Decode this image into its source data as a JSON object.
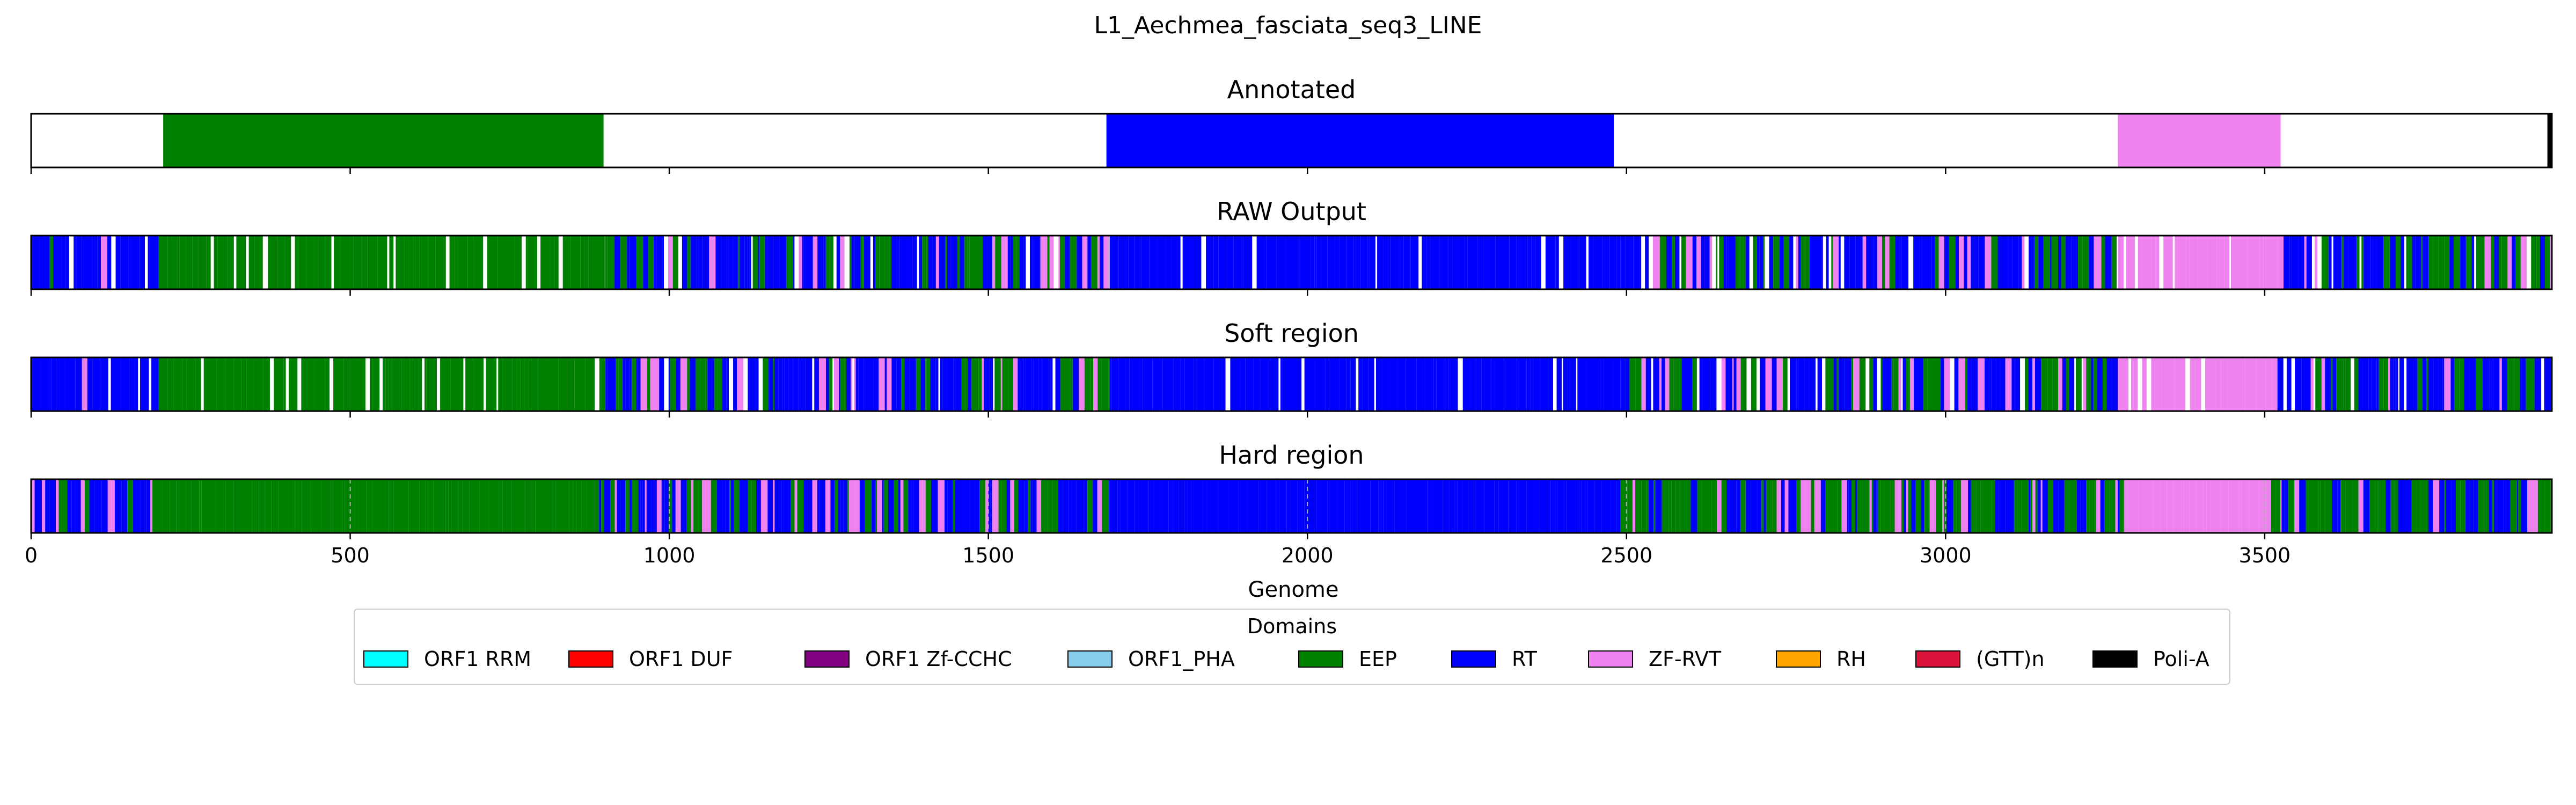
{
  "chart_data": {
    "type": "genome-track",
    "title": "L1_Aechmea_fasciata_seq3_LINE",
    "xlabel": "Genome",
    "xlim": [
      0,
      3950
    ],
    "xticks": [
      0,
      500,
      1000,
      1500,
      2000,
      2500,
      3000,
      3500
    ],
    "xtick_labels": [
      "0",
      "500",
      "1000",
      "1500",
      "2000",
      "2500",
      "3000",
      "3500"
    ],
    "panels": [
      {
        "title": "Annotated",
        "segments": [
          {
            "start": 207,
            "end": 897,
            "domain": "EEP"
          },
          {
            "start": 1685,
            "end": 2480,
            "domain": "RT"
          },
          {
            "start": 3270,
            "end": 3525,
            "domain": "ZF-RVT"
          },
          {
            "start": 3943,
            "end": 3950,
            "domain": "Poli-A"
          }
        ]
      },
      {
        "title": "RAW Output",
        "profile": [
          {
            "start": 0,
            "end": 200,
            "pattern": "RT",
            "fill": 0.85,
            "mix": [
              "RT",
              "ZF-RVT",
              "EEP"
            ]
          },
          {
            "start": 200,
            "end": 500,
            "pattern": "EEP",
            "fill": 0.78,
            "mix": [
              "EEP"
            ]
          },
          {
            "start": 500,
            "end": 900,
            "pattern": "EEP",
            "fill": 0.82,
            "mix": [
              "EEP"
            ]
          },
          {
            "start": 900,
            "end": 1690,
            "pattern": "mixed",
            "fill": 0.9,
            "mix": [
              "RT",
              "EEP",
              "ZF-RVT"
            ]
          },
          {
            "start": 1690,
            "end": 2480,
            "pattern": "RT",
            "fill": 0.88,
            "mix": [
              "RT"
            ]
          },
          {
            "start": 2480,
            "end": 3270,
            "pattern": "mixed",
            "fill": 0.88,
            "mix": [
              "RT",
              "EEP",
              "ZF-RVT"
            ]
          },
          {
            "start": 3270,
            "end": 3520,
            "pattern": "ZF-RVT",
            "fill": 0.7,
            "mix": [
              "ZF-RVT"
            ]
          },
          {
            "start": 3520,
            "end": 3950,
            "pattern": "mixed",
            "fill": 0.9,
            "mix": [
              "RT",
              "EEP",
              "ZF-RVT"
            ]
          }
        ]
      },
      {
        "title": "Soft region",
        "profile": [
          {
            "start": 0,
            "end": 200,
            "pattern": "RT",
            "fill": 0.85,
            "mix": [
              "RT",
              "ZF-RVT",
              "EEP"
            ]
          },
          {
            "start": 200,
            "end": 500,
            "pattern": "EEP",
            "fill": 0.78,
            "mix": [
              "EEP"
            ]
          },
          {
            "start": 500,
            "end": 900,
            "pattern": "EEP",
            "fill": 0.82,
            "mix": [
              "EEP"
            ]
          },
          {
            "start": 900,
            "end": 1690,
            "pattern": "mixed",
            "fill": 0.9,
            "mix": [
              "RT",
              "EEP",
              "ZF-RVT"
            ]
          },
          {
            "start": 1690,
            "end": 2480,
            "pattern": "RT",
            "fill": 0.88,
            "mix": [
              "RT"
            ]
          },
          {
            "start": 2480,
            "end": 3270,
            "pattern": "mixed",
            "fill": 0.88,
            "mix": [
              "RT",
              "EEP",
              "ZF-RVT"
            ]
          },
          {
            "start": 3270,
            "end": 3520,
            "pattern": "ZF-RVT",
            "fill": 0.7,
            "mix": [
              "ZF-RVT"
            ]
          },
          {
            "start": 3520,
            "end": 3950,
            "pattern": "mixed",
            "fill": 0.9,
            "mix": [
              "RT",
              "EEP",
              "ZF-RVT"
            ]
          }
        ]
      },
      {
        "title": "Hard region",
        "grid": true,
        "profile": [
          {
            "start": 0,
            "end": 190,
            "pattern": "mixed",
            "fill": 1.0,
            "mix": [
              "RT",
              "ZF-RVT",
              "EEP"
            ]
          },
          {
            "start": 190,
            "end": 890,
            "pattern": "EEP",
            "fill": 1.0,
            "mix": [
              "EEP"
            ]
          },
          {
            "start": 890,
            "end": 1690,
            "pattern": "mixed",
            "fill": 1.0,
            "mix": [
              "RT",
              "EEP",
              "ZF-RVT"
            ]
          },
          {
            "start": 1690,
            "end": 2475,
            "pattern": "RT",
            "fill": 1.0,
            "mix": [
              "RT"
            ]
          },
          {
            "start": 2475,
            "end": 3280,
            "pattern": "mixed",
            "fill": 1.0,
            "mix": [
              "EEP",
              "RT",
              "ZF-RVT"
            ]
          },
          {
            "start": 3280,
            "end": 3510,
            "pattern": "ZF-RVT",
            "fill": 1.0,
            "mix": [
              "ZF-RVT"
            ]
          },
          {
            "start": 3510,
            "end": 3950,
            "pattern": "mixed",
            "fill": 1.0,
            "mix": [
              "EEP",
              "RT",
              "ZF-RVT"
            ]
          }
        ]
      }
    ],
    "legend": {
      "title": "Domains",
      "placement": "bottom-center",
      "entries": [
        {
          "label": "ORF1 RRM",
          "color": "#00ffff"
        },
        {
          "label": "ORF1 DUF",
          "color": "#ff0000"
        },
        {
          "label": "ORF1 Zf-CCHC",
          "color": "#800080"
        },
        {
          "label": "ORF1_PHA",
          "color": "#87ceeb"
        },
        {
          "label": "EEP",
          "color": "#008000"
        },
        {
          "label": "RT",
          "color": "#0000ff"
        },
        {
          "label": "ZF-RVT",
          "color": "#ee82ee"
        },
        {
          "label": "RH",
          "color": "#ffa500"
        },
        {
          "label": "(GTT)n",
          "color": "#dc143c"
        },
        {
          "label": "Poli-A",
          "color": "#000000"
        }
      ]
    }
  }
}
